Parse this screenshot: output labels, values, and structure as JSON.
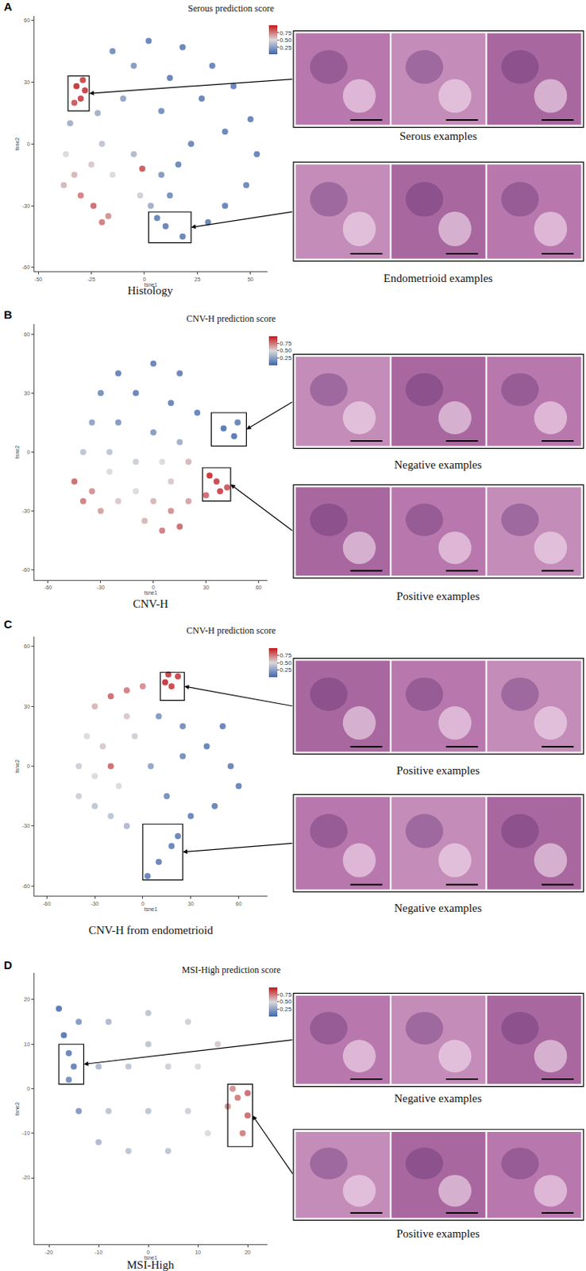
{
  "chart_data": [
    {
      "type": "scatter",
      "panel": "A",
      "subtitle": "Histology",
      "x_label": "tsne1",
      "y_label": "tsne2",
      "xlim": [
        -52,
        58
      ],
      "xticks": [
        -50,
        -25,
        0,
        25,
        50
      ],
      "ylim": [
        -62,
        62
      ],
      "yticks": [
        -60,
        -30,
        0,
        30,
        60
      ],
      "color_label": "Serous prediction score",
      "color_range": [
        0,
        1
      ],
      "color_ticks": [
        0.25,
        {
          "value": 0.5,
          "label": "0.50"
        },
        0.75
      ],
      "x": [
        -32,
        -30,
        -28,
        -33,
        -29,
        -15,
        2,
        18,
        32,
        42,
        50,
        53,
        48,
        38,
        -5,
        12,
        27,
        38,
        22,
        8,
        -10,
        -22,
        -35,
        30,
        10,
        18,
        6,
        -37,
        -33,
        -30,
        -24,
        -17,
        -25,
        -15,
        -5,
        -1,
        -2,
        3,
        8,
        -38,
        -20,
        12,
        16,
        -20
      ],
      "y": [
        28,
        22,
        26,
        20,
        31,
        45,
        50,
        47,
        38,
        28,
        12,
        -5,
        -20,
        -30,
        38,
        32,
        22,
        6,
        0,
        16,
        22,
        15,
        10,
        -38,
        -40,
        -45,
        -36,
        -5,
        -15,
        -25,
        -30,
        -35,
        -10,
        -15,
        -5,
        -12,
        -25,
        -30,
        -15,
        -20,
        0,
        -25,
        -10,
        -38
      ],
      "scores": [
        0.95,
        0.9,
        0.92,
        0.85,
        0.9,
        0.15,
        0.1,
        0.1,
        0.1,
        0.1,
        0.1,
        0.1,
        0.12,
        0.1,
        0.2,
        0.1,
        0.1,
        0.1,
        0.12,
        0.15,
        0.25,
        0.3,
        0.3,
        0.1,
        0.1,
        0.1,
        0.1,
        0.5,
        0.6,
        0.75,
        0.8,
        0.7,
        0.55,
        0.5,
        0.35,
        0.85,
        0.45,
        0.3,
        0.2,
        0.6,
        0.4,
        0.15,
        0.12,
        0.75
      ],
      "highlights": [
        {
          "text": "Serous examples",
          "x": [
            -36,
            -26
          ],
          "y": [
            16,
            33
          ]
        },
        {
          "text": "Endometrioid examples",
          "x": [
            2,
            22
          ],
          "y": [
            -48,
            -33
          ]
        }
      ]
    },
    {
      "type": "scatter",
      "panel": "B",
      "subtitle": "CNV-H",
      "x_label": "tsne1",
      "y_label": "tsne2",
      "xlim": [
        -68,
        65
      ],
      "xticks": [
        -60,
        -30,
        0,
        30,
        60
      ],
      "ylim": [
        -65,
        65
      ],
      "yticks": [
        -60,
        -30,
        0,
        30,
        60
      ],
      "color_label": "CNV-H prediction score",
      "color_range": [
        0,
        1
      ],
      "color_ticks": [
        0.25,
        {
          "value": 0.5,
          "label": "0.50"
        },
        0.75
      ],
      "x": [
        -20,
        0,
        15,
        -30,
        -10,
        10,
        25,
        40,
        46,
        48,
        -35,
        -20,
        0,
        15,
        -40,
        -25,
        -10,
        5,
        20,
        32,
        36,
        38,
        42,
        30,
        -45,
        -40,
        -30,
        -20,
        -10,
        0,
        10,
        15,
        5,
        -5,
        -35,
        20,
        -25,
        10
      ],
      "y": [
        40,
        45,
        40,
        30,
        30,
        25,
        20,
        12,
        8,
        15,
        15,
        15,
        10,
        5,
        0,
        0,
        -5,
        -5,
        -5,
        -12,
        -15,
        -20,
        -18,
        -22,
        -15,
        -25,
        -30,
        -25,
        -20,
        -25,
        -30,
        -38,
        -40,
        -35,
        -20,
        -25,
        -10,
        -15
      ],
      "scores": [
        0.1,
        0.1,
        0.1,
        0.15,
        0.1,
        0.1,
        0.1,
        0.05,
        0.05,
        0.1,
        0.25,
        0.2,
        0.2,
        0.3,
        0.4,
        0.4,
        0.45,
        0.5,
        0.6,
        0.95,
        0.9,
        0.9,
        0.85,
        0.8,
        0.8,
        0.75,
        0.65,
        0.55,
        0.5,
        0.6,
        0.7,
        0.8,
        0.75,
        0.6,
        0.7,
        0.65,
        0.5,
        0.55
      ],
      "highlights": [
        {
          "text": "Negative examples",
          "x": [
            33,
            53
          ],
          "y": [
            3,
            20
          ]
        },
        {
          "text": "Positive examples",
          "x": [
            28,
            44
          ],
          "y": [
            -25,
            -8
          ]
        }
      ]
    },
    {
      "type": "scatter",
      "panel": "C",
      "subtitle": "CNV-H from endometrioid",
      "x_label": "tsne1",
      "y_label": "tsne2",
      "xlim": [
        -68,
        78
      ],
      "xticks": [
        -60,
        -30,
        0,
        30,
        60
      ],
      "ylim": [
        -65,
        65
      ],
      "yticks": [
        -60,
        -30,
        0,
        30,
        60
      ],
      "color_label": "CNV-H prediction score",
      "color_range": [
        0,
        1
      ],
      "color_ticks": [
        0.25,
        {
          "value": 0.5,
          "label": "0.50"
        },
        0.75
      ],
      "x": [
        14,
        18,
        22,
        16,
        0,
        -10,
        -20,
        -30,
        -35,
        -40,
        -30,
        -25,
        -20,
        -15,
        -30,
        -20,
        -10,
        -40,
        -5,
        -10,
        10,
        25,
        40,
        55,
        60,
        50,
        45,
        30,
        15,
        5,
        25,
        3,
        10,
        18,
        22
      ],
      "y": [
        42,
        40,
        45,
        46,
        40,
        38,
        35,
        30,
        15,
        0,
        -5,
        10,
        0,
        -10,
        -20,
        -25,
        -30,
        -15,
        15,
        25,
        25,
        20,
        10,
        0,
        -10,
        20,
        -20,
        -25,
        -15,
        0,
        5,
        -55,
        -48,
        -40,
        -35
      ],
      "scores": [
        0.95,
        0.9,
        0.9,
        0.92,
        0.7,
        0.75,
        0.8,
        0.6,
        0.5,
        0.45,
        0.5,
        0.55,
        0.8,
        0.5,
        0.4,
        0.4,
        0.35,
        0.45,
        0.45,
        0.55,
        0.2,
        0.15,
        0.1,
        0.1,
        0.1,
        0.1,
        0.1,
        0.1,
        0.15,
        0.25,
        0.15,
        0.1,
        0.1,
        0.1,
        0.1
      ],
      "highlights": [
        {
          "text": "Positive examples",
          "x": [
            11,
            26
          ],
          "y": [
            33,
            47
          ]
        },
        {
          "text": "Negative examples",
          "x": [
            0,
            25
          ],
          "y": [
            -57,
            -29
          ]
        }
      ]
    },
    {
      "type": "scatter",
      "panel": "D",
      "subtitle": "MSI-High",
      "x_label": "tsne1",
      "y_label": "tsne2",
      "xlim": [
        -23,
        24
      ],
      "xticks": [
        -20,
        -10,
        0,
        10,
        20
      ],
      "ylim": [
        -35,
        26
      ],
      "yticks": [
        -20,
        -10,
        0,
        10,
        20
      ],
      "color_label": "MSI-High prediction score",
      "color_range": [
        0,
        1
      ],
      "color_ticks": [
        0.25,
        {
          "value": 0.5,
          "label": "0.50"
        },
        0.75
      ],
      "x": [
        -18,
        -17,
        -16,
        -15,
        -16,
        -14,
        -14,
        -8,
        0,
        8,
        -10,
        -4,
        4,
        10,
        -8,
        0,
        8,
        -4,
        4,
        12,
        14,
        -10,
        0,
        18,
        20,
        19,
        17,
        16,
        20
      ],
      "y": [
        18,
        12,
        8,
        5,
        2,
        -5,
        15,
        15,
        17,
        15,
        5,
        5,
        5,
        5,
        -5,
        -5,
        -5,
        -14,
        -14,
        -10,
        10,
        -12,
        10,
        -2,
        -6,
        -10,
        0,
        -4,
        -1
      ],
      "scores": [
        0.05,
        0.05,
        0.1,
        0.1,
        0.15,
        0.2,
        0.2,
        0.35,
        0.4,
        0.45,
        0.35,
        0.4,
        0.45,
        0.5,
        0.4,
        0.4,
        0.45,
        0.4,
        0.4,
        0.5,
        0.55,
        0.35,
        0.4,
        0.75,
        0.8,
        0.75,
        0.7,
        0.7,
        0.8
      ],
      "highlights": [
        {
          "text": "Negative examples",
          "x": [
            -18,
            -13
          ],
          "y": [
            1,
            10
          ]
        },
        {
          "text": "Positive examples",
          "x": [
            16,
            21
          ],
          "y": [
            -13,
            1
          ]
        }
      ]
    }
  ]
}
